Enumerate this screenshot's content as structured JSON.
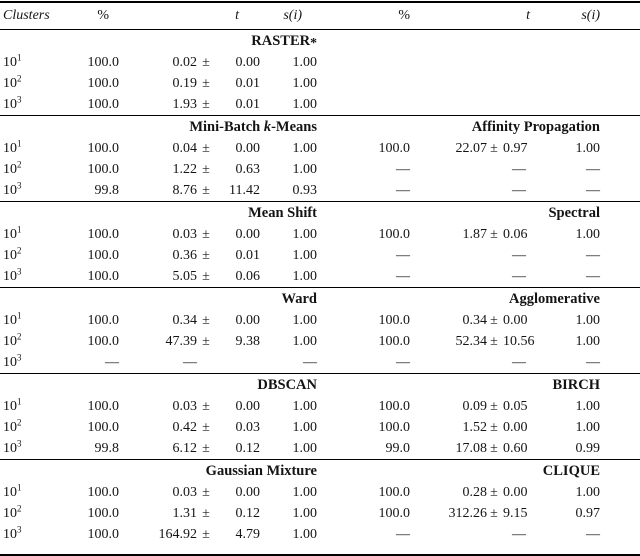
{
  "pm": "±",
  "dash": "—",
  "header": {
    "clusters": "Clusters",
    "pct_l": "%",
    "t_l": "t",
    "si_l": "s(i)",
    "pct_r": "%",
    "t_r": "t",
    "si_r": "s(i)"
  },
  "sections": [
    {
      "left_title": {
        "pre": "RASTER",
        "star": "*"
      },
      "right_title": null,
      "rows": [
        {
          "base": "10",
          "sup": "1",
          "left": {
            "pct": "100.0",
            "tv": "0.02",
            "te": "0.00",
            "si": "1.00"
          },
          "right": {
            "empty": true
          }
        },
        {
          "base": "10",
          "sup": "2",
          "left": {
            "pct": "100.0",
            "tv": "0.19",
            "te": "0.01",
            "si": "1.00"
          },
          "right": {
            "empty": true
          }
        },
        {
          "base": "10",
          "sup": "3",
          "left": {
            "pct": "100.0",
            "tv": "1.93",
            "te": "0.01",
            "si": "1.00"
          },
          "right": {
            "empty": true
          }
        }
      ]
    },
    {
      "left_title": {
        "pre": "Mini-Batch ",
        "italic": "k",
        "post": "-Means"
      },
      "right_title": {
        "pre": "Affinity Propagation"
      },
      "rows": [
        {
          "base": "10",
          "sup": "1",
          "left": {
            "pct": "100.0",
            "tv": "0.04",
            "te": "0.00",
            "si": "1.00"
          },
          "right": {
            "pct": "100.0",
            "tv": "22.07",
            "te": "0.97",
            "si": "1.00"
          }
        },
        {
          "base": "10",
          "sup": "2",
          "left": {
            "pct": "100.0",
            "tv": "1.22",
            "te": "0.63",
            "si": "1.00"
          },
          "right": {
            "dash": true
          }
        },
        {
          "base": "10",
          "sup": "3",
          "left": {
            "pct": "99.8",
            "tv": "8.76",
            "te": "11.42",
            "si": "0.93"
          },
          "right": {
            "dash": true
          }
        }
      ]
    },
    {
      "left_title": {
        "pre": "Mean Shift"
      },
      "right_title": {
        "pre": "Spectral"
      },
      "rows": [
        {
          "base": "10",
          "sup": "1",
          "left": {
            "pct": "100.0",
            "tv": "0.03",
            "te": "0.00",
            "si": "1.00"
          },
          "right": {
            "pct": "100.0",
            "tv": "1.87",
            "te": "0.06",
            "si": "1.00"
          }
        },
        {
          "base": "10",
          "sup": "2",
          "left": {
            "pct": "100.0",
            "tv": "0.36",
            "te": "0.01",
            "si": "1.00"
          },
          "right": {
            "dash": true
          }
        },
        {
          "base": "10",
          "sup": "3",
          "left": {
            "pct": "100.0",
            "tv": "5.05",
            "te": "0.06",
            "si": "1.00"
          },
          "right": {
            "dash": true
          }
        }
      ]
    },
    {
      "left_title": {
        "pre": "Ward"
      },
      "right_title": {
        "pre": "Agglomerative"
      },
      "rows": [
        {
          "base": "10",
          "sup": "1",
          "left": {
            "pct": "100.0",
            "tv": "0.34",
            "te": "0.00",
            "si": "1.00"
          },
          "right": {
            "pct": "100.0",
            "tv": "0.34",
            "te": "0.00",
            "si": "1.00"
          }
        },
        {
          "base": "10",
          "sup": "2",
          "left": {
            "pct": "100.0",
            "tv": "47.39",
            "te": "9.38",
            "si": "1.00"
          },
          "right": {
            "pct": "100.0",
            "tv": "52.34",
            "te": "10.56",
            "si": "1.00"
          }
        },
        {
          "base": "10",
          "sup": "3",
          "left": {
            "dash": true
          },
          "right": {
            "dash": true
          }
        }
      ]
    },
    {
      "left_title": {
        "pre": "DBSCAN"
      },
      "right_title": {
        "pre": "BIRCH"
      },
      "rows": [
        {
          "base": "10",
          "sup": "1",
          "left": {
            "pct": "100.0",
            "tv": "0.03",
            "te": "0.00",
            "si": "1.00"
          },
          "right": {
            "pct": "100.0",
            "tv": "0.09",
            "te": "0.05",
            "si": "1.00"
          }
        },
        {
          "base": "10",
          "sup": "2",
          "left": {
            "pct": "100.0",
            "tv": "0.42",
            "te": "0.03",
            "si": "1.00"
          },
          "right": {
            "pct": "100.0",
            "tv": "1.52",
            "te": "0.00",
            "si": "1.00"
          }
        },
        {
          "base": "10",
          "sup": "3",
          "left": {
            "pct": "99.8",
            "tv": "6.12",
            "te": "0.12",
            "si": "1.00"
          },
          "right": {
            "pct": "99.0",
            "tv": "17.08",
            "te": "0.60",
            "si": "0.99"
          }
        }
      ]
    },
    {
      "left_title": {
        "pre": "Gaussian Mixture"
      },
      "right_title": {
        "pre": "CLIQUE"
      },
      "rows": [
        {
          "base": "10",
          "sup": "1",
          "left": {
            "pct": "100.0",
            "tv": "0.03",
            "te": "0.00",
            "si": "1.00"
          },
          "right": {
            "pct": "100.0",
            "tv": "0.28",
            "te": "0.00",
            "si": "1.00"
          }
        },
        {
          "base": "10",
          "sup": "2",
          "left": {
            "pct": "100.0",
            "tv": "1.31",
            "te": "0.12",
            "si": "1.00"
          },
          "right": {
            "pct": "100.0",
            "tv": "312.26",
            "te": "9.15",
            "si": "0.97"
          }
        },
        {
          "base": "10",
          "sup": "3",
          "left": {
            "pct": "100.0",
            "tv": "164.92",
            "te": "4.79",
            "si": "1.00"
          },
          "right": {
            "dash": true
          }
        }
      ]
    }
  ]
}
